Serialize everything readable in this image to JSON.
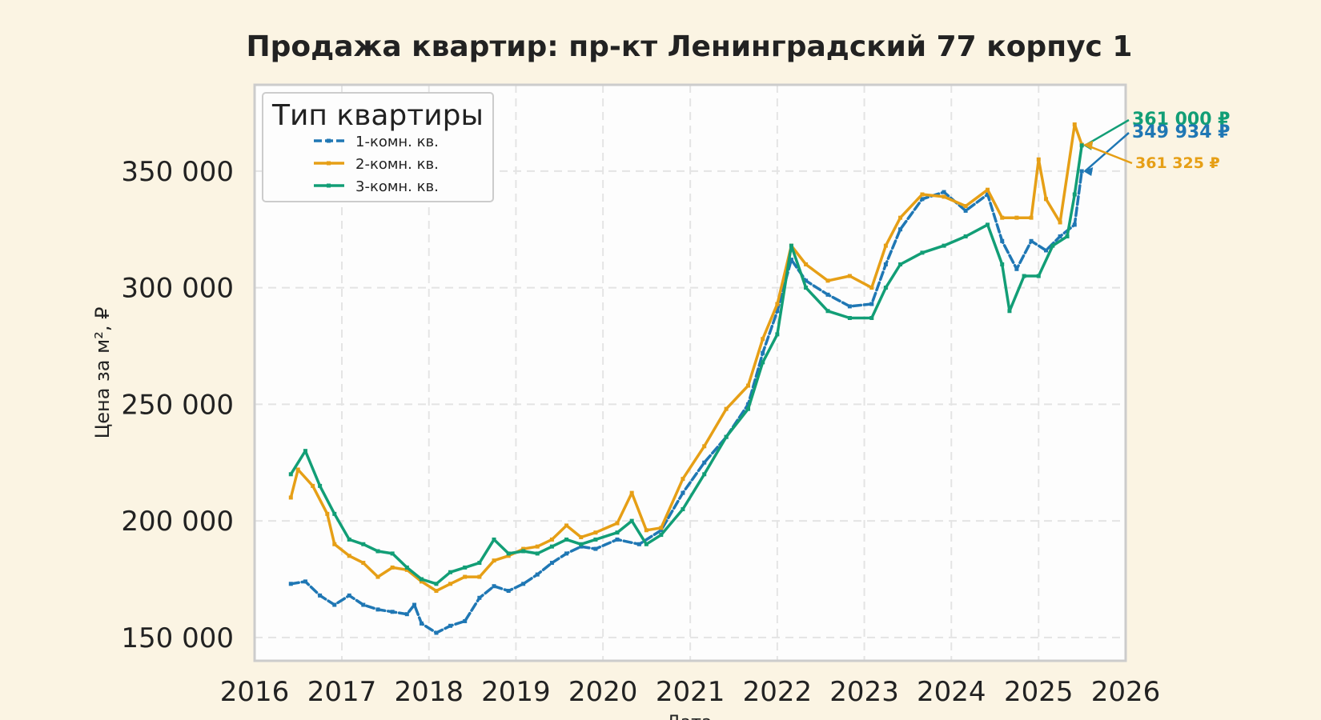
{
  "chart_data": {
    "type": "line",
    "title": "Продажа квартир: пр-кт Ленинградский 77 корпус 1",
    "xlabel": "Дата",
    "ylabel": "Цена за м², ₽",
    "xlim": [
      "2016-01-01",
      "2026-01-01"
    ],
    "ylim": [
      140000,
      387000
    ],
    "x_ticks": [
      "2016",
      "2017",
      "2018",
      "2019",
      "2020",
      "2021",
      "2022",
      "2023",
      "2024",
      "2025",
      "2026"
    ],
    "y_ticks": [
      "150 000",
      "200 000",
      "250 000",
      "300 000",
      "350 000"
    ],
    "y_tick_values": [
      150000,
      200000,
      250000,
      300000,
      350000
    ],
    "grid": true,
    "legend": {
      "title": "Тип квартиры",
      "placement": "top-left"
    },
    "series": [
      {
        "name": "1-комн. кв.",
        "color": "#1f77b4",
        "style": "dashed",
        "points": [
          [
            "2016-06-01",
            173000
          ],
          [
            "2016-08-01",
            174000
          ],
          [
            "2016-10-01",
            168000
          ],
          [
            "2016-12-01",
            164000
          ],
          [
            "2017-02-01",
            168000
          ],
          [
            "2017-04-01",
            164000
          ],
          [
            "2017-06-01",
            162000
          ],
          [
            "2017-08-01",
            161000
          ],
          [
            "2017-10-01",
            160000
          ],
          [
            "2017-11-01",
            164000
          ],
          [
            "2017-12-01",
            156000
          ],
          [
            "2018-02-01",
            152000
          ],
          [
            "2018-04-01",
            155000
          ],
          [
            "2018-06-01",
            157000
          ],
          [
            "2018-08-01",
            167000
          ],
          [
            "2018-10-01",
            172000
          ],
          [
            "2018-12-01",
            170000
          ],
          [
            "2019-02-01",
            173000
          ],
          [
            "2019-04-01",
            177000
          ],
          [
            "2019-06-01",
            182000
          ],
          [
            "2019-08-01",
            186000
          ],
          [
            "2019-10-01",
            189000
          ],
          [
            "2019-12-01",
            188000
          ],
          [
            "2020-03-01",
            192000
          ],
          [
            "2020-06-01",
            190000
          ],
          [
            "2020-09-01",
            196000
          ],
          [
            "2020-12-01",
            212000
          ],
          [
            "2021-03-01",
            225000
          ],
          [
            "2021-06-01",
            236000
          ],
          [
            "2021-09-01",
            250000
          ],
          [
            "2021-11-01",
            272000
          ],
          [
            "2022-01-01",
            290000
          ],
          [
            "2022-03-01",
            312000
          ],
          [
            "2022-05-01",
            303000
          ],
          [
            "2022-08-01",
            297000
          ],
          [
            "2022-11-01",
            292000
          ],
          [
            "2023-02-01",
            293000
          ],
          [
            "2023-04-01",
            310000
          ],
          [
            "2023-06-01",
            325000
          ],
          [
            "2023-09-01",
            338000
          ],
          [
            "2023-12-01",
            341000
          ],
          [
            "2024-03-01",
            333000
          ],
          [
            "2024-06-01",
            340000
          ],
          [
            "2024-08-01",
            320000
          ],
          [
            "2024-10-01",
            308000
          ],
          [
            "2024-12-01",
            320000
          ],
          [
            "2025-02-01",
            316000
          ],
          [
            "2025-04-01",
            322000
          ],
          [
            "2025-06-01",
            327000
          ],
          [
            "2025-07-01",
            349934
          ]
        ]
      },
      {
        "name": "2-комн. кв.",
        "color": "#e69f16",
        "style": "solid",
        "points": [
          [
            "2016-06-01",
            210000
          ],
          [
            "2016-07-01",
            222000
          ],
          [
            "2016-09-01",
            215000
          ],
          [
            "2016-11-01",
            203000
          ],
          [
            "2016-12-01",
            190000
          ],
          [
            "2017-02-01",
            185000
          ],
          [
            "2017-04-01",
            182000
          ],
          [
            "2017-06-01",
            176000
          ],
          [
            "2017-08-01",
            180000
          ],
          [
            "2017-10-01",
            179000
          ],
          [
            "2017-12-01",
            174000
          ],
          [
            "2018-02-01",
            170000
          ],
          [
            "2018-04-01",
            173000
          ],
          [
            "2018-06-01",
            176000
          ],
          [
            "2018-08-01",
            176000
          ],
          [
            "2018-10-01",
            183000
          ],
          [
            "2018-12-01",
            185000
          ],
          [
            "2019-02-01",
            188000
          ],
          [
            "2019-04-01",
            189000
          ],
          [
            "2019-06-01",
            192000
          ],
          [
            "2019-08-01",
            198000
          ],
          [
            "2019-10-01",
            193000
          ],
          [
            "2019-12-01",
            195000
          ],
          [
            "2020-03-01",
            199000
          ],
          [
            "2020-05-01",
            212000
          ],
          [
            "2020-07-01",
            196000
          ],
          [
            "2020-09-01",
            197000
          ],
          [
            "2020-12-01",
            218000
          ],
          [
            "2021-03-01",
            232000
          ],
          [
            "2021-06-01",
            248000
          ],
          [
            "2021-09-01",
            258000
          ],
          [
            "2021-11-01",
            278000
          ],
          [
            "2022-01-01",
            293000
          ],
          [
            "2022-03-01",
            318000
          ],
          [
            "2022-05-01",
            310000
          ],
          [
            "2022-08-01",
            303000
          ],
          [
            "2022-11-01",
            305000
          ],
          [
            "2023-02-01",
            300000
          ],
          [
            "2023-04-01",
            318000
          ],
          [
            "2023-06-01",
            330000
          ],
          [
            "2023-09-01",
            340000
          ],
          [
            "2023-12-01",
            339000
          ],
          [
            "2024-03-01",
            335000
          ],
          [
            "2024-06-01",
            342000
          ],
          [
            "2024-08-01",
            330000
          ],
          [
            "2024-10-01",
            330000
          ],
          [
            "2024-12-01",
            330000
          ],
          [
            "2025-01-01",
            355000
          ],
          [
            "2025-02-01",
            338000
          ],
          [
            "2025-04-01",
            328000
          ],
          [
            "2025-06-01",
            370000
          ],
          [
            "2025-07-01",
            361325
          ]
        ]
      },
      {
        "name": "3-комн. кв.",
        "color": "#129e76",
        "style": "solid",
        "points": [
          [
            "2016-06-01",
            220000
          ],
          [
            "2016-08-01",
            230000
          ],
          [
            "2016-10-01",
            215000
          ],
          [
            "2016-12-01",
            203000
          ],
          [
            "2017-02-01",
            192000
          ],
          [
            "2017-04-01",
            190000
          ],
          [
            "2017-06-01",
            187000
          ],
          [
            "2017-08-01",
            186000
          ],
          [
            "2017-10-01",
            180000
          ],
          [
            "2017-12-01",
            175000
          ],
          [
            "2018-02-01",
            173000
          ],
          [
            "2018-04-01",
            178000
          ],
          [
            "2018-06-01",
            180000
          ],
          [
            "2018-08-01",
            182000
          ],
          [
            "2018-10-01",
            192000
          ],
          [
            "2018-12-01",
            186000
          ],
          [
            "2019-02-01",
            187000
          ],
          [
            "2019-04-01",
            186000
          ],
          [
            "2019-06-01",
            189000
          ],
          [
            "2019-08-01",
            192000
          ],
          [
            "2019-10-01",
            190000
          ],
          [
            "2019-12-01",
            192000
          ],
          [
            "2020-03-01",
            195000
          ],
          [
            "2020-05-01",
            200000
          ],
          [
            "2020-07-01",
            190000
          ],
          [
            "2020-09-01",
            194000
          ],
          [
            "2020-12-01",
            205000
          ],
          [
            "2021-03-01",
            220000
          ],
          [
            "2021-06-01",
            236000
          ],
          [
            "2021-09-01",
            248000
          ],
          [
            "2021-11-01",
            268000
          ],
          [
            "2022-01-01",
            280000
          ],
          [
            "2022-03-01",
            318000
          ],
          [
            "2022-05-01",
            300000
          ],
          [
            "2022-08-01",
            290000
          ],
          [
            "2022-11-01",
            287000
          ],
          [
            "2023-02-01",
            287000
          ],
          [
            "2023-04-01",
            300000
          ],
          [
            "2023-06-01",
            310000
          ],
          [
            "2023-09-01",
            315000
          ],
          [
            "2023-12-01",
            318000
          ],
          [
            "2024-03-01",
            322000
          ],
          [
            "2024-06-01",
            327000
          ],
          [
            "2024-08-01",
            310000
          ],
          [
            "2024-09-01",
            290000
          ],
          [
            "2024-11-01",
            305000
          ],
          [
            "2025-01-01",
            305000
          ],
          [
            "2025-03-01",
            318000
          ],
          [
            "2025-05-01",
            322000
          ],
          [
            "2025-06-01",
            340000
          ],
          [
            "2025-07-01",
            361000
          ]
        ]
      }
    ],
    "annotations": [
      {
        "text": "361 000 ₽",
        "series": 2,
        "color": "#129e76"
      },
      {
        "text": "349 934 ₽",
        "series": 0,
        "color": "#1f77b4"
      },
      {
        "text": "361 325 ₽",
        "series": 1,
        "color": "#e69f16"
      }
    ]
  }
}
